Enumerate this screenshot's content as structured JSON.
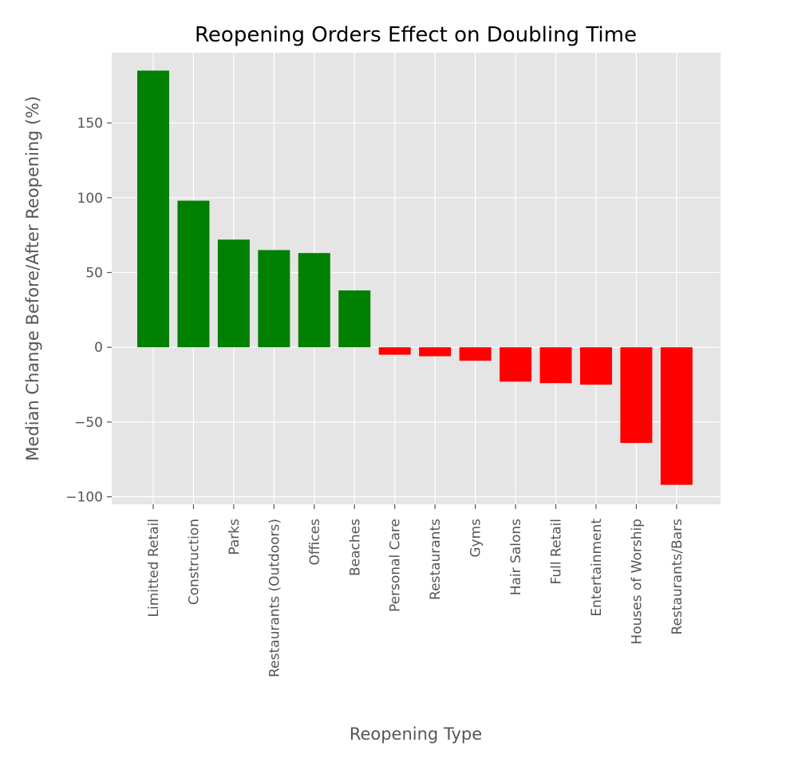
{
  "chart_data": {
    "type": "bar",
    "title": "Reopening Orders Effect on Doubling Time",
    "xlabel": "Reopening Type",
    "ylabel": "Median Change Before/After Reopening (%)",
    "categories": [
      "Limitted Retail",
      "Construction",
      "Parks",
      "Restaurants (Outdoors)",
      "Offices",
      "Beaches",
      "Personal Care",
      "Restaurants",
      "Gyms",
      "Hair Salons",
      "Full Retail",
      "Entertainment",
      "Houses of Worship",
      "Restaurants/Bars"
    ],
    "values": [
      185,
      98,
      72,
      65,
      63,
      38,
      -5,
      -6,
      -9,
      -23,
      -24,
      -25,
      -64,
      -92
    ],
    "ylim": [
      -105,
      197
    ],
    "yticks": [
      -100,
      -50,
      0,
      50,
      100,
      150
    ],
    "ytick_labels": [
      "−100",
      "−50",
      "0",
      "50",
      "100",
      "150"
    ],
    "grid": true,
    "colors": {
      "positive": "#008000",
      "negative": "#ff0000",
      "background": "#e5e5e5",
      "grid": "#ffffff",
      "text": "#555555"
    }
  }
}
